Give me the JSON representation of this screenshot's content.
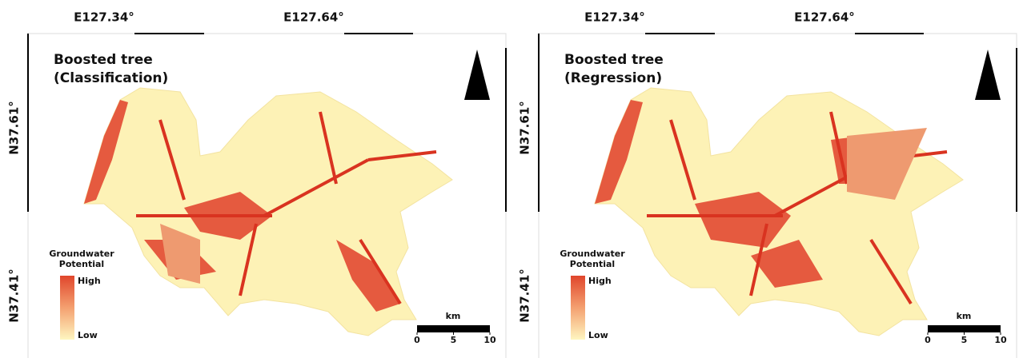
{
  "panels": [
    {
      "title": [
        "Boosted tree",
        "(Classification)"
      ],
      "longitude_labels": [
        "E127.34°",
        "E127.64°"
      ],
      "latitude_labels": [
        "N37.61°",
        "N37.41°"
      ],
      "legend": {
        "title": [
          "Groundwater",
          "Potential"
        ],
        "high": "High",
        "low": "Low"
      },
      "scale": {
        "unit": "km",
        "ticks": [
          0,
          5,
          10
        ]
      }
    },
    {
      "title": [
        "Boosted tree",
        "(Regression)"
      ],
      "longitude_labels": [
        "E127.34°",
        "E127.64°"
      ],
      "latitude_labels": [
        "N37.61°",
        "N37.41°"
      ],
      "legend": {
        "title": [
          "Groundwater",
          "Potential"
        ],
        "high": "High",
        "low": "Low"
      },
      "scale": {
        "unit": "km",
        "ticks": [
          0,
          5,
          10
        ]
      }
    }
  ]
}
